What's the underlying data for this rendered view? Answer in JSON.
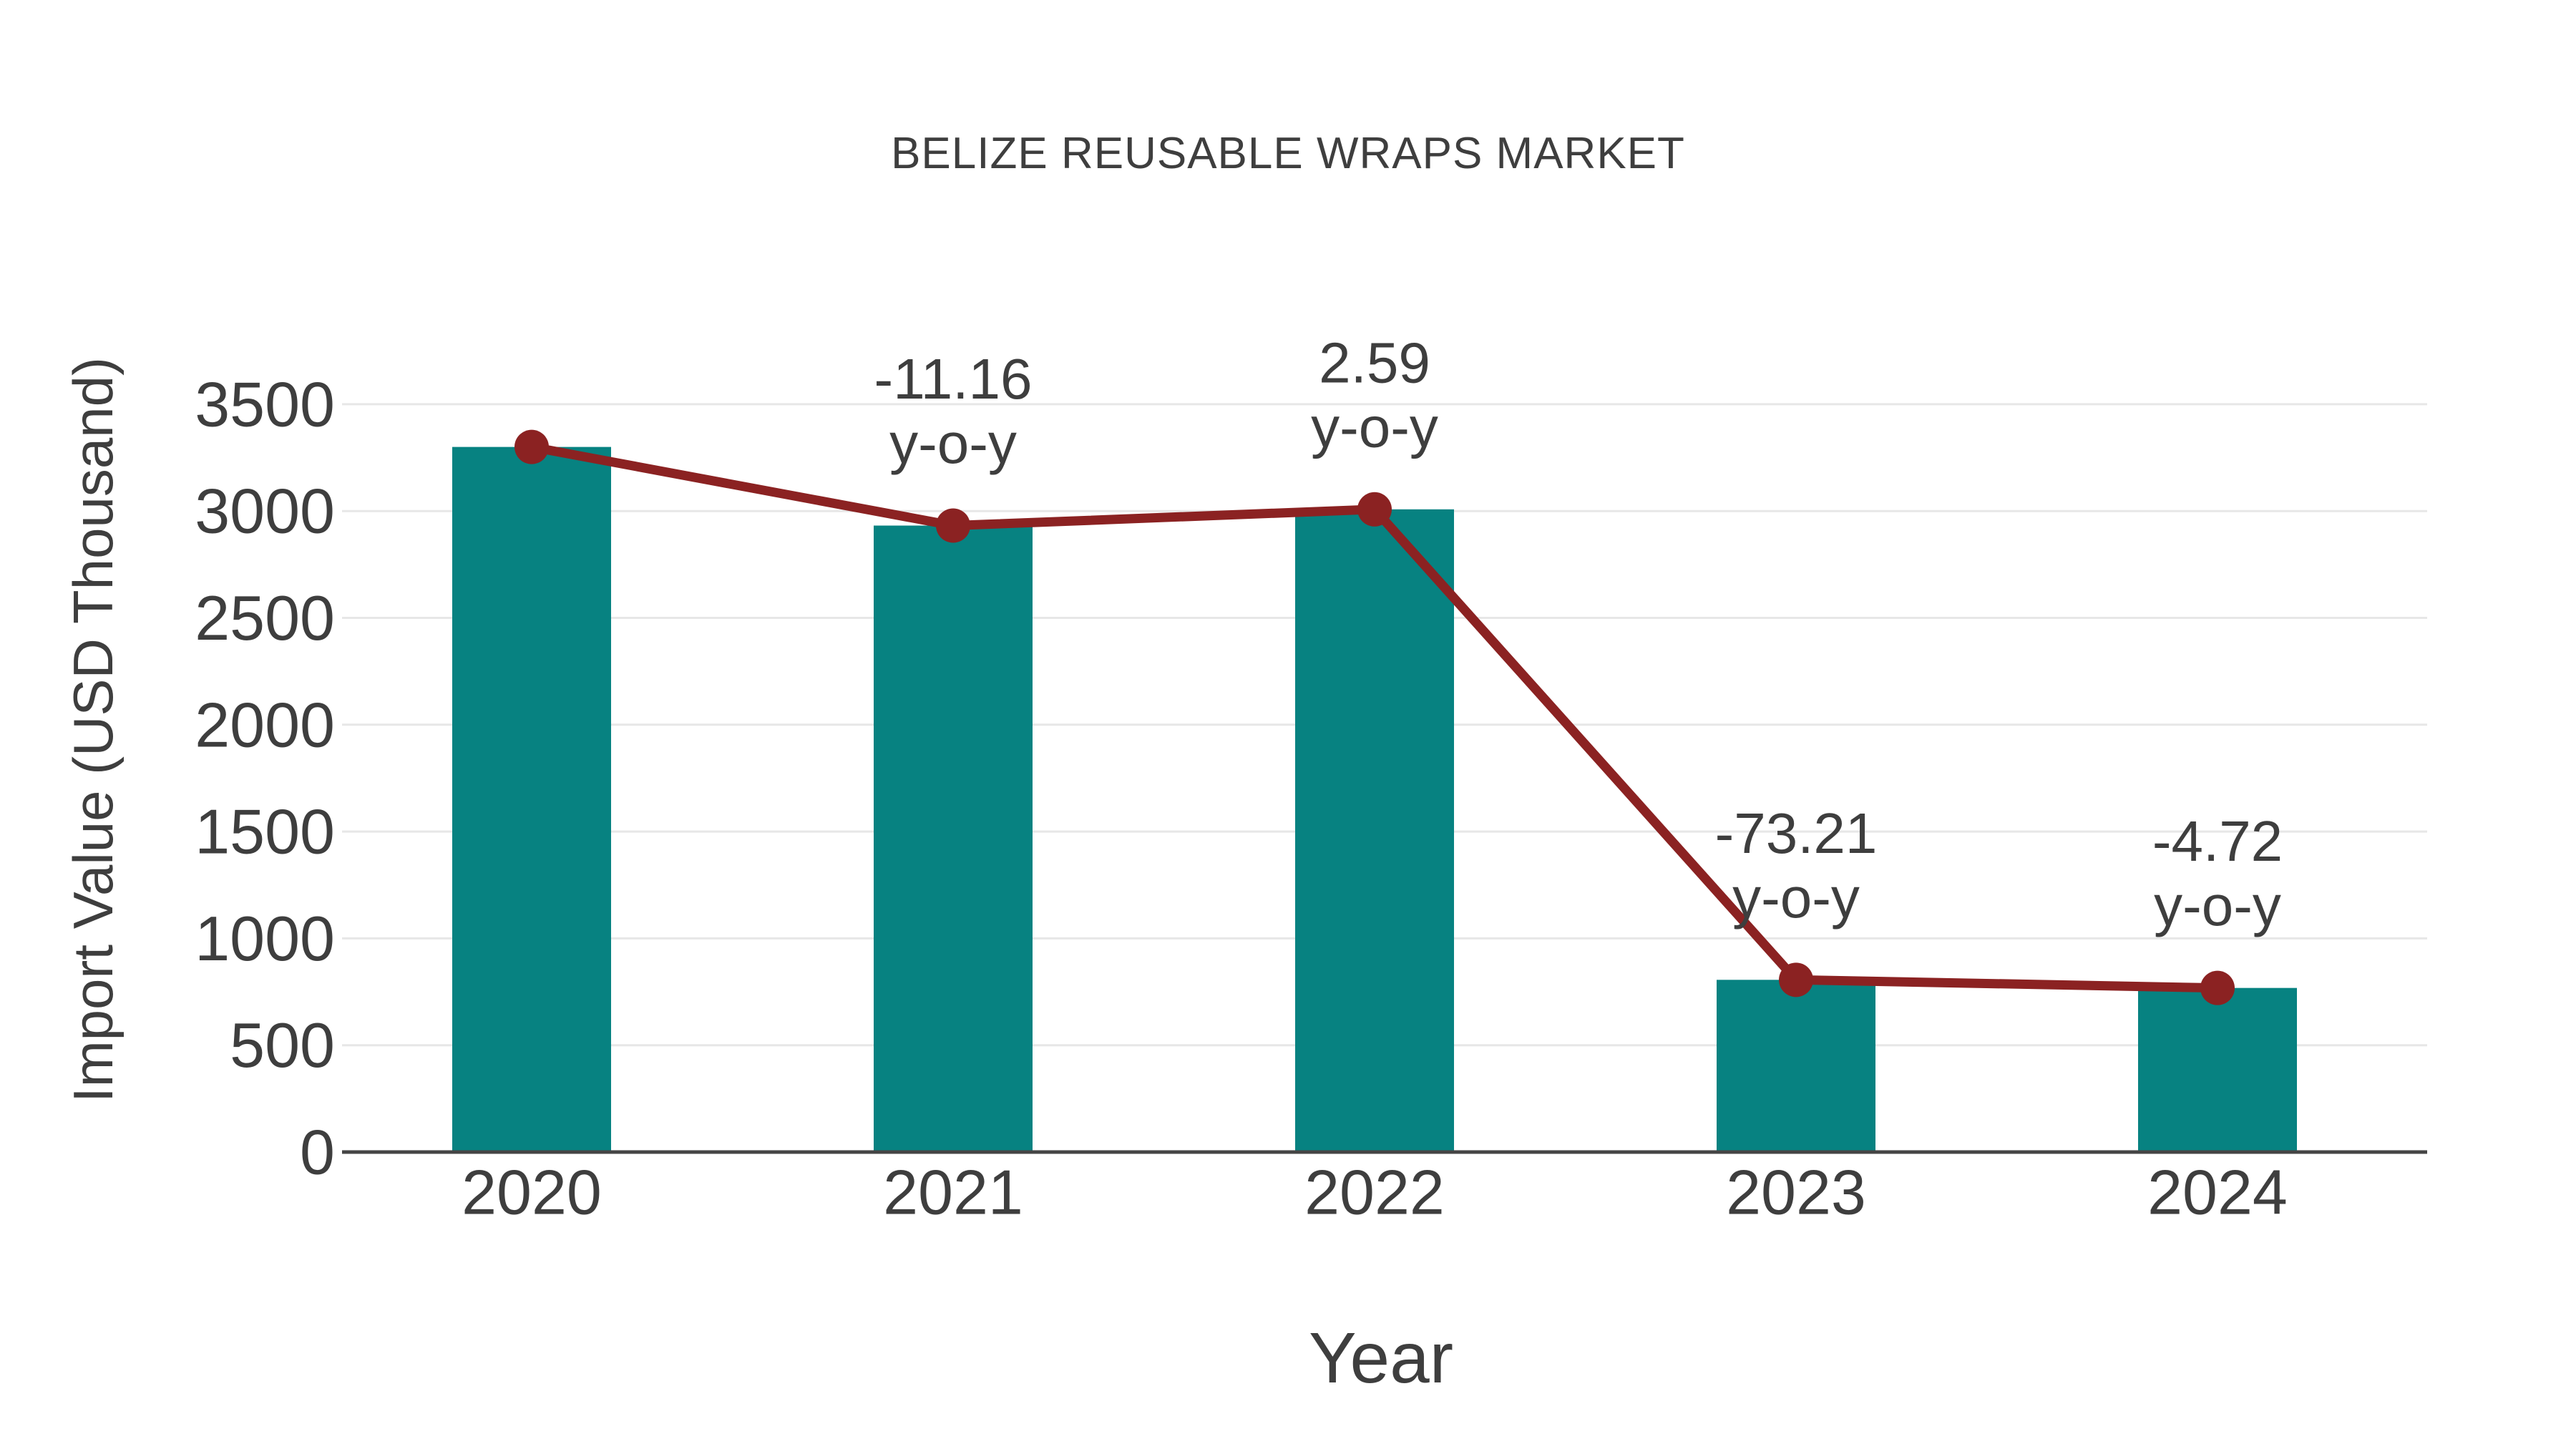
{
  "chart_data": {
    "type": "bar",
    "title": "BELIZE REUSABLE WRAPS MARKET",
    "xlabel": "Year",
    "ylabel": "Import Value (USD Thousand)",
    "categories": [
      "2020",
      "2021",
      "2022",
      "2023",
      "2024"
    ],
    "series": [
      {
        "name": "import-value-bars",
        "type": "bar",
        "color": "#078281",
        "values": [
          3300,
          2932,
          3008,
          806,
          768
        ]
      },
      {
        "name": "import-value-line",
        "type": "line",
        "color": "#8b2222",
        "values": [
          3300,
          2932,
          3008,
          806,
          768
        ]
      }
    ],
    "annotations": [
      {
        "category": "2021",
        "line1": "-11.16",
        "line2": "y-o-y"
      },
      {
        "category": "2022",
        "line1": "2.59",
        "line2": "y-o-y"
      },
      {
        "category": "2023",
        "line1": "-73.21",
        "line2": "y-o-y"
      },
      {
        "category": "2024",
        "line1": "-4.72",
        "line2": "y-o-y"
      }
    ],
    "yticks": [
      0,
      500,
      1000,
      1500,
      2000,
      2500,
      3000,
      3500
    ],
    "ylim": [
      0,
      3890
    ],
    "grid": true,
    "legend": false,
    "colors": {
      "bar": "#078281",
      "line": "#8b2222",
      "marker": "#8b2222",
      "text": "#3e3e3e",
      "grid": "#e7e7e7",
      "axis": "#454545",
      "background": "#ffffff"
    }
  }
}
